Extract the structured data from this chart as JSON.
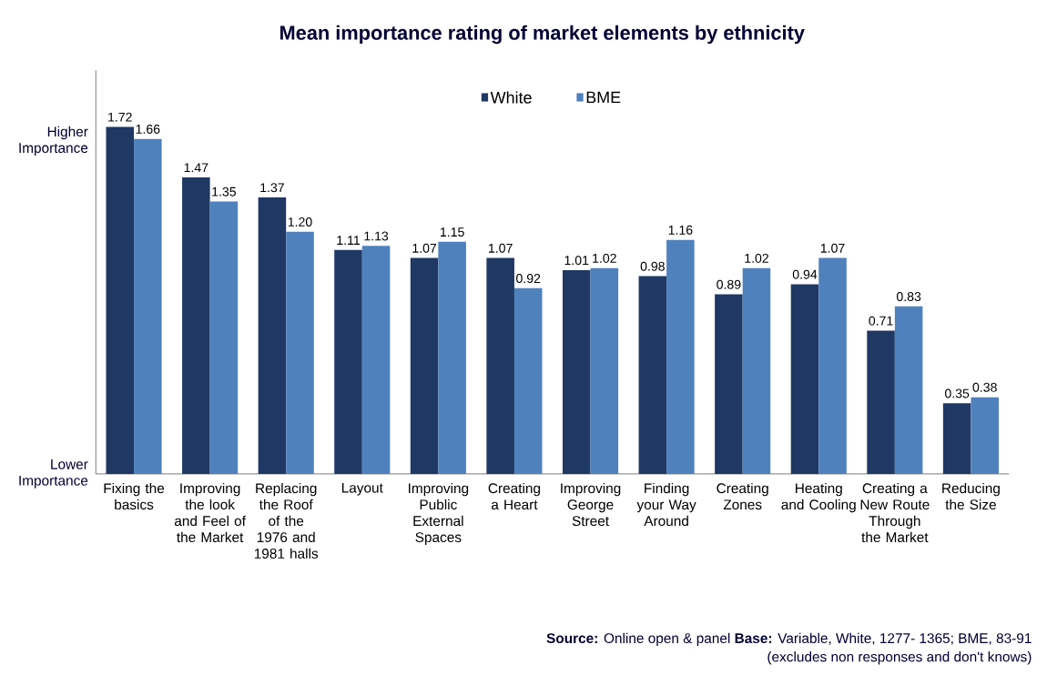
{
  "chart_data": {
    "type": "bar",
    "title": "Mean importance rating of market elements by ethnicity",
    "categories": [
      "Fixing the basics",
      "Improving the look and Feel of the Market",
      "Replacing the Roof of the 1976 and 1981 halls",
      "Layout",
      "Improving Public External Spaces",
      "Creating a Heart",
      "Improving George Street",
      "Finding your Way Around",
      "Creating Zones",
      "Heating and Cooling",
      "Creating a New Route Through the Market",
      "Reducing the Size"
    ],
    "series": [
      {
        "name": "White",
        "color": "#1f3864",
        "values": [
          1.72,
          1.47,
          1.37,
          1.11,
          1.07,
          1.07,
          1.01,
          0.98,
          0.89,
          0.94,
          0.71,
          0.35
        ],
        "value_labels": [
          "1.72",
          "1.47",
          "1.37",
          "1.11",
          "1.07",
          "1.07",
          "1.01",
          "0.98",
          "0.89",
          "0.94",
          "0.71",
          "0.35"
        ]
      },
      {
        "name": "BME",
        "color": "#4f81bd",
        "values": [
          1.66,
          1.35,
          1.2,
          1.13,
          1.15,
          0.92,
          1.02,
          1.16,
          1.02,
          1.07,
          0.83,
          0.38
        ],
        "value_labels": [
          "1.66",
          "1.35",
          "1.20",
          "1.13",
          "1.15",
          "0.92",
          "1.02",
          "1.16",
          "1.02",
          "1.07",
          "0.83",
          "0.38"
        ]
      }
    ],
    "ylim": [
      0,
      2
    ],
    "legend": "top",
    "annotations": [
      "Higher Importance",
      "Lower Importance",
      "**Source:** Online open & panel  **Base:** Variable, White, 1277- 1365; BME, 83-91",
      "(excludes non responses and don't knows)"
    ]
  }
}
